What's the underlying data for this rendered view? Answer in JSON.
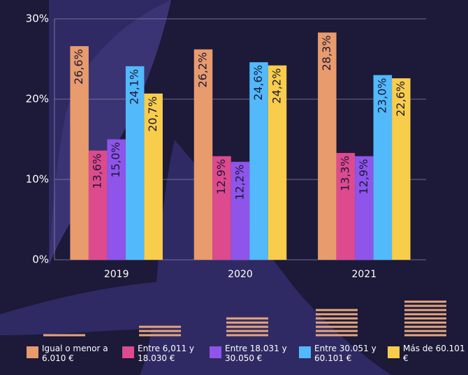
{
  "chart_data": {
    "type": "bar",
    "categories": [
      "2019",
      "2020",
      "2021"
    ],
    "series": [
      {
        "name": "Igual o menor a 6.010 €",
        "color": "#e89b6c",
        "values": [
          26.6,
          26.2,
          28.3
        ],
        "value_labels": [
          "26,6%",
          "26,2%",
          "28,3%"
        ]
      },
      {
        "name": "Entre 6,011 y 18.030 €",
        "color": "#dd4a8e",
        "values": [
          13.6,
          12.9,
          13.3
        ],
        "value_labels": [
          "13,6%",
          "12,9%",
          "13,3%"
        ]
      },
      {
        "name": "Entre 18.031 y 30.050 €",
        "color": "#8f54ea",
        "values": [
          15.0,
          12.2,
          12.9
        ],
        "value_labels": [
          "15,0%",
          "12,2%",
          "12,9%"
        ]
      },
      {
        "name": "Entre 30.051 y 60.101 €",
        "color": "#52b9fb",
        "values": [
          24.1,
          24.6,
          23.0
        ],
        "value_labels": [
          "24,1%",
          "24,6%",
          "23,0%"
        ]
      },
      {
        "name": "Más de 60.101 €",
        "color": "#f8cd4b",
        "values": [
          20.7,
          24.2,
          22.6
        ],
        "value_labels": [
          "20,7%",
          "24,2%",
          "22,6%"
        ]
      }
    ],
    "ylim": [
      0,
      30
    ],
    "yticks": [
      {
        "value": 0,
        "label": "0%"
      },
      {
        "value": 10,
        "label": "10%"
      },
      {
        "value": 20,
        "label": "20%"
      },
      {
        "value": 30,
        "label": "30%"
      }
    ],
    "grid": true
  }
}
